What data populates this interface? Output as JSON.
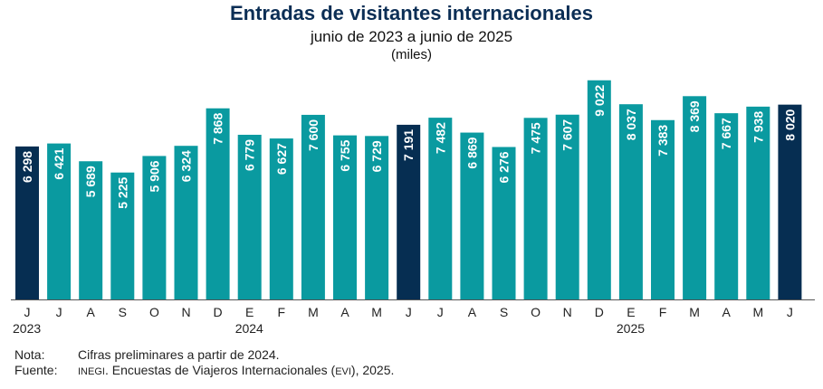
{
  "header": {
    "title": "Entradas de visitantes internacionales",
    "subtitle": "junio de 2023 a junio de 2025",
    "units": "(miles)"
  },
  "colors": {
    "bar": "#0a9aa0",
    "highlight": "#062e52",
    "axis": "#555555"
  },
  "chart_data": {
    "type": "bar",
    "categories": [
      "J",
      "J",
      "A",
      "S",
      "O",
      "N",
      "D",
      "E",
      "F",
      "M",
      "A",
      "M",
      "J",
      "J",
      "A",
      "S",
      "O",
      "N",
      "D",
      "E",
      "F",
      "M",
      "A",
      "M",
      "J"
    ],
    "values": [
      6298,
      6421,
      5689,
      5225,
      5906,
      6324,
      7868,
      6779,
      6627,
      7600,
      6755,
      6729,
      7191,
      7482,
      6869,
      6276,
      7475,
      7607,
      9022,
      8037,
      7383,
      8369,
      7667,
      7938,
      8020
    ],
    "value_labels": [
      "6 298",
      "6 421",
      "5 689",
      "5 225",
      "5 906",
      "6 324",
      "7 868",
      "6 779",
      "6 627",
      "7 600",
      "6 755",
      "6 729",
      "7 191",
      "7 482",
      "6 869",
      "6 276",
      "7 475",
      "7 607",
      "9 022",
      "8 037",
      "7 383",
      "8 369",
      "7 667",
      "7 938",
      "8 020"
    ],
    "highlight_indices": [
      0,
      12,
      24
    ],
    "year_labels": [
      {
        "index": 0,
        "label": "2023"
      },
      {
        "index": 7,
        "label": "2024"
      },
      {
        "index": 19,
        "label": "2025"
      }
    ],
    "ylim": [
      0,
      9500
    ],
    "grid": false,
    "legend": "none"
  },
  "notes": {
    "nota_label": "Nota:",
    "nota_text": "Cifras preliminares a partir de 2024.",
    "fuente_label": "Fuente:",
    "fuente_org": "INEGI",
    "fuente_mid": ". Encuestas de Viajeros Internacionales (",
    "fuente_abbr": "EVI",
    "fuente_end": "), 2025."
  }
}
